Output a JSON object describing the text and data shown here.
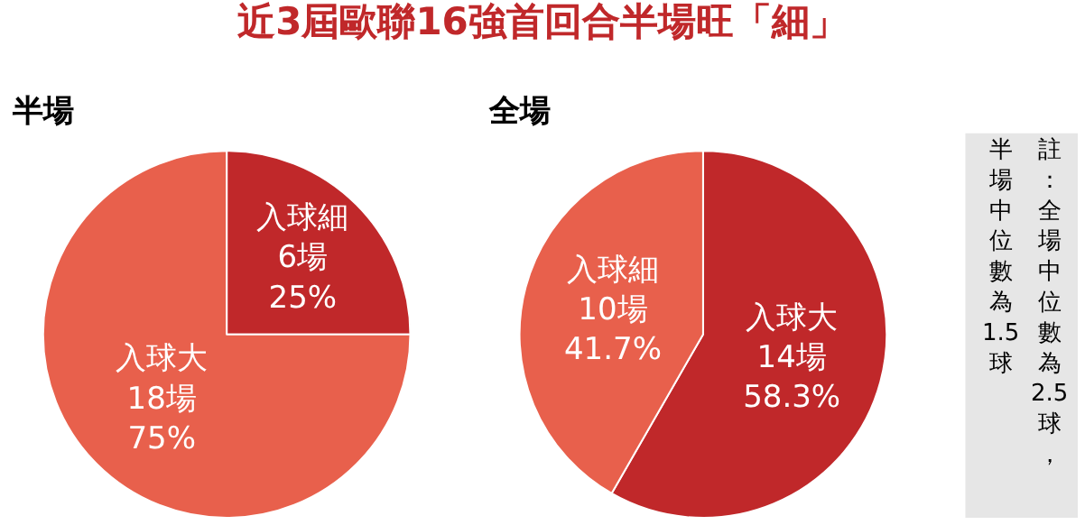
{
  "chart_data": [
    {
      "type": "pie",
      "title": "近3屆歐聯16強首回合半場旺「細」",
      "subtitle": "半場",
      "categories": [
        "入球細",
        "入球大"
      ],
      "values": [
        25,
        75
      ],
      "colors": [
        "#c0282a",
        "#e8604c"
      ],
      "value_labels": [
        "6場\n25%",
        "18場\n75%"
      ],
      "annotations": [
        "註：全場中位數為2.5球，",
        "半場中位數為1.5球"
      ]
    },
    {
      "type": "pie",
      "subtitle": "全場",
      "categories": [
        "入球大",
        "入球細"
      ],
      "values": [
        58.3,
        41.7
      ],
      "colors": [
        "#c0282a",
        "#e8604c"
      ],
      "value_labels": [
        "14場\n58.3%",
        "10場\n41.7%"
      ]
    }
  ]
}
